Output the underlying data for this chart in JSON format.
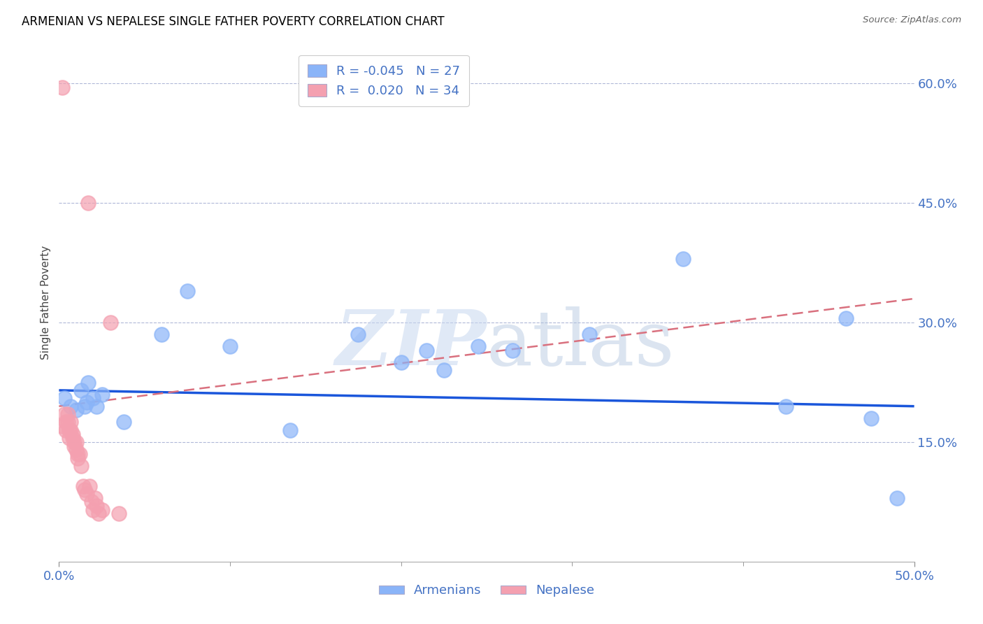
{
  "title": "ARMENIAN VS NEPALESE SINGLE FATHER POVERTY CORRELATION CHART",
  "source": "Source: ZipAtlas.com",
  "ylabel": "Single Father Poverty",
  "xlim": [
    0.0,
    0.5
  ],
  "ylim": [
    0.0,
    0.65
  ],
  "yticks": [
    0.15,
    0.3,
    0.45,
    0.6
  ],
  "ytick_labels": [
    "15.0%",
    "30.0%",
    "45.0%",
    "60.0%"
  ],
  "xtick_major": [
    0.0,
    0.5
  ],
  "xtick_major_labels": [
    "0.0%",
    "50.0%"
  ],
  "xtick_minor": [
    0.1,
    0.2,
    0.3,
    0.4
  ],
  "armenian_color": "#8ab4f8",
  "nepalese_color": "#f4a0b0",
  "armenian_line_color": "#1a56db",
  "nepalese_line_color": "#d9707e",
  "legend_r_armenian": "-0.045",
  "legend_n_armenian": "27",
  "legend_r_nepalese": "0.020",
  "legend_n_nepalese": "34",
  "armenian_x": [
    0.003,
    0.007,
    0.01,
    0.013,
    0.015,
    0.016,
    0.017,
    0.02,
    0.022,
    0.025,
    0.038,
    0.06,
    0.075,
    0.1,
    0.135,
    0.175,
    0.2,
    0.215,
    0.225,
    0.245,
    0.265,
    0.31,
    0.365,
    0.425,
    0.46,
    0.475,
    0.49
  ],
  "armenian_y": [
    0.205,
    0.195,
    0.19,
    0.215,
    0.195,
    0.2,
    0.225,
    0.205,
    0.195,
    0.21,
    0.175,
    0.285,
    0.34,
    0.27,
    0.165,
    0.285,
    0.25,
    0.265,
    0.24,
    0.27,
    0.265,
    0.285,
    0.38,
    0.195,
    0.305,
    0.18,
    0.08
  ],
  "nepalese_x": [
    0.002,
    0.002,
    0.003,
    0.004,
    0.004,
    0.005,
    0.005,
    0.006,
    0.006,
    0.007,
    0.007,
    0.008,
    0.008,
    0.009,
    0.009,
    0.01,
    0.01,
    0.011,
    0.011,
    0.012,
    0.013,
    0.014,
    0.015,
    0.016,
    0.017,
    0.018,
    0.019,
    0.02,
    0.021,
    0.022,
    0.023,
    0.025,
    0.03,
    0.035
  ],
  "nepalese_y": [
    0.595,
    0.17,
    0.185,
    0.175,
    0.165,
    0.185,
    0.175,
    0.165,
    0.155,
    0.175,
    0.165,
    0.16,
    0.155,
    0.15,
    0.145,
    0.15,
    0.14,
    0.135,
    0.13,
    0.135,
    0.12,
    0.095,
    0.09,
    0.085,
    0.45,
    0.095,
    0.075,
    0.065,
    0.08,
    0.07,
    0.06,
    0.065,
    0.3,
    0.06
  ],
  "armenian_trend_x": [
    0.0,
    0.5
  ],
  "armenian_trend_y": [
    0.215,
    0.195
  ],
  "nepalese_trend_x": [
    0.0,
    0.5
  ],
  "nepalese_trend_y": [
    0.195,
    0.33
  ]
}
